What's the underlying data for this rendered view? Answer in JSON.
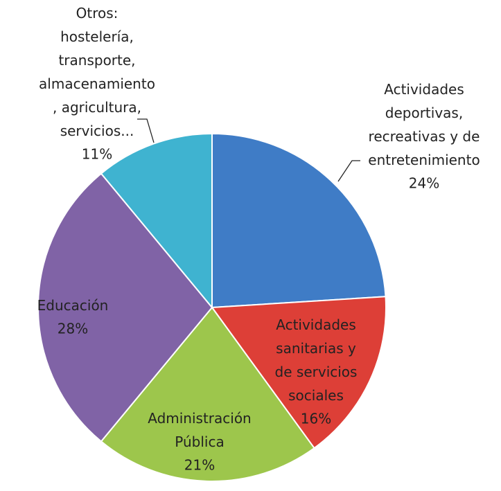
{
  "chart_data": {
    "type": "pie",
    "categories": [
      "Actividades\ndeportivas,\nrecreativas y de\nentretenimiento",
      "Actividades\nsanitarias y\nde servicios\nsociales",
      "Administración\nPública",
      "Educación",
      "Otros:\nhostelería,\ntransporte,\nalmacenamiento\n, agricultura,\nservicios..."
    ],
    "values": [
      24,
      16,
      21,
      28,
      11
    ],
    "value_labels": [
      "24%",
      "16%",
      "21%",
      "28%",
      "11%"
    ],
    "colors": [
      "#3f7cc6",
      "#dd3f37",
      "#9dc64c",
      "#8063a6",
      "#3fb3d0"
    ]
  }
}
